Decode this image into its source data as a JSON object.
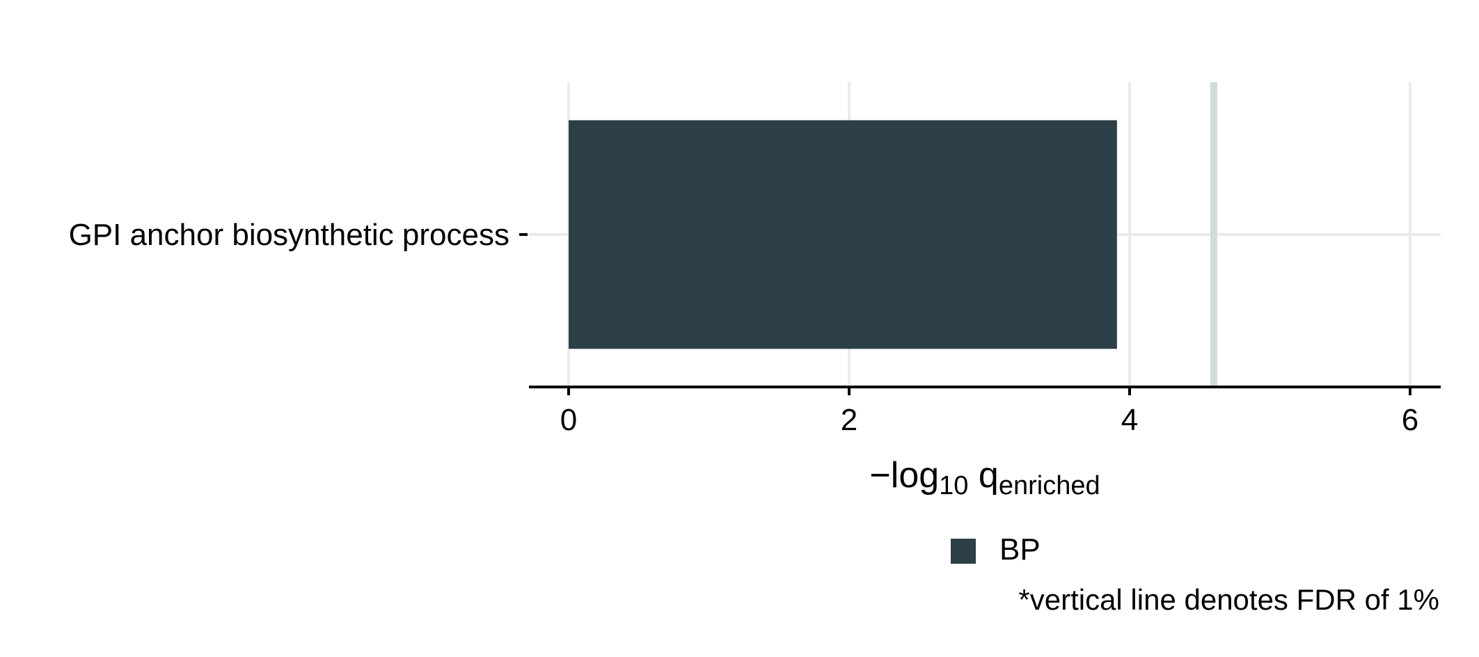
{
  "chart_data": {
    "type": "bar",
    "orientation": "horizontal",
    "categories": [
      "GPI anchor biosynthetic process"
    ],
    "series": [
      {
        "name": "BP",
        "values": [
          3.91
        ],
        "color": "#2d4047"
      }
    ],
    "xlabel": {
      "prefix": "−log",
      "sub1": "10",
      "mid": " q",
      "sub2": "enriched"
    },
    "xlim": [
      0,
      6.2
    ],
    "xticks": [
      0,
      2,
      4,
      6
    ],
    "grid": true,
    "threshold": {
      "value": 4.6,
      "color": "#cfdbdc"
    },
    "legend_position": "bottom",
    "footnote": "*vertical line denotes FDR of 1%",
    "colors": {
      "grid": "#ebebeb",
      "axis": "#000000"
    }
  }
}
